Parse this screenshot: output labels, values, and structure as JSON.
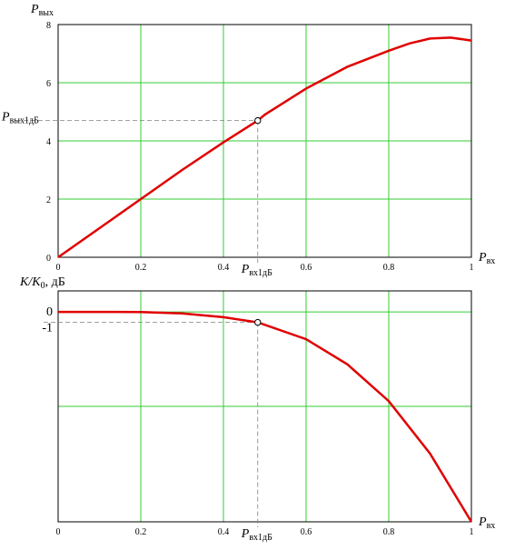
{
  "chart_data": [
    {
      "type": "line",
      "title": "",
      "ylabel": "P",
      "ylabel_sub": "вых",
      "xlabel": "P",
      "xlabel_sub": "вх",
      "xlim": [
        0,
        1
      ],
      "ylim": [
        0,
        8
      ],
      "xticks": [
        0,
        0.2,
        0.4,
        0.6,
        0.8,
        1
      ],
      "xtick_labels": [
        "0",
        "0.2",
        "0.4",
        "0.6",
        "0.8",
        "1"
      ],
      "yticks": [
        0,
        2,
        4,
        6,
        8
      ],
      "ytick_labels": [
        "0",
        "2",
        "4",
        "6",
        "8"
      ],
      "grid": true,
      "series": [
        {
          "color": "#e00000",
          "x": [
            0,
            0.1,
            0.2,
            0.3,
            0.4,
            0.483,
            0.5,
            0.6,
            0.7,
            0.8,
            0.85,
            0.9,
            0.95,
            1.0
          ],
          "y": [
            0,
            1.0,
            2.0,
            3.0,
            3.95,
            4.7,
            4.9,
            5.8,
            6.55,
            7.1,
            7.35,
            7.52,
            7.55,
            7.45
          ]
        }
      ],
      "annotation": {
        "x": 0.483,
        "y": 4.7,
        "x_label": "P",
        "x_label_sub": "вх1дБ",
        "y_label": "P",
        "y_label_sub": "вых1дБ"
      }
    },
    {
      "type": "line",
      "title": "",
      "ylabel": "K/K",
      "ylabel_sub": "0",
      "ylabel_suffix": ", дБ",
      "xlabel": "P",
      "xlabel_sub": "вх",
      "xlim": [
        0,
        1
      ],
      "ylim": [
        -20,
        2
      ],
      "xticks": [
        0,
        0.2,
        0.4,
        0.6,
        0.8,
        1
      ],
      "xtick_labels": [
        "0",
        "0.2",
        "0.4",
        "0.6",
        "0.8",
        "1"
      ],
      "yticks": [
        0,
        -1
      ],
      "ytick_labels": [
        "0",
        "-1"
      ],
      "grid": true,
      "series": [
        {
          "color": "#e00000",
          "x": [
            0,
            0.1,
            0.2,
            0.3,
            0.4,
            0.483,
            0.6,
            0.7,
            0.8,
            0.9,
            1.0
          ],
          "y": [
            0,
            0,
            -0.02,
            -0.15,
            -0.5,
            -1.0,
            -2.6,
            -5.0,
            -8.5,
            -13.5,
            -20.0
          ]
        }
      ],
      "annotation": {
        "x": 0.483,
        "y": -1.0,
        "x_label": "P",
        "x_label_sub": "вх1дБ"
      }
    }
  ]
}
